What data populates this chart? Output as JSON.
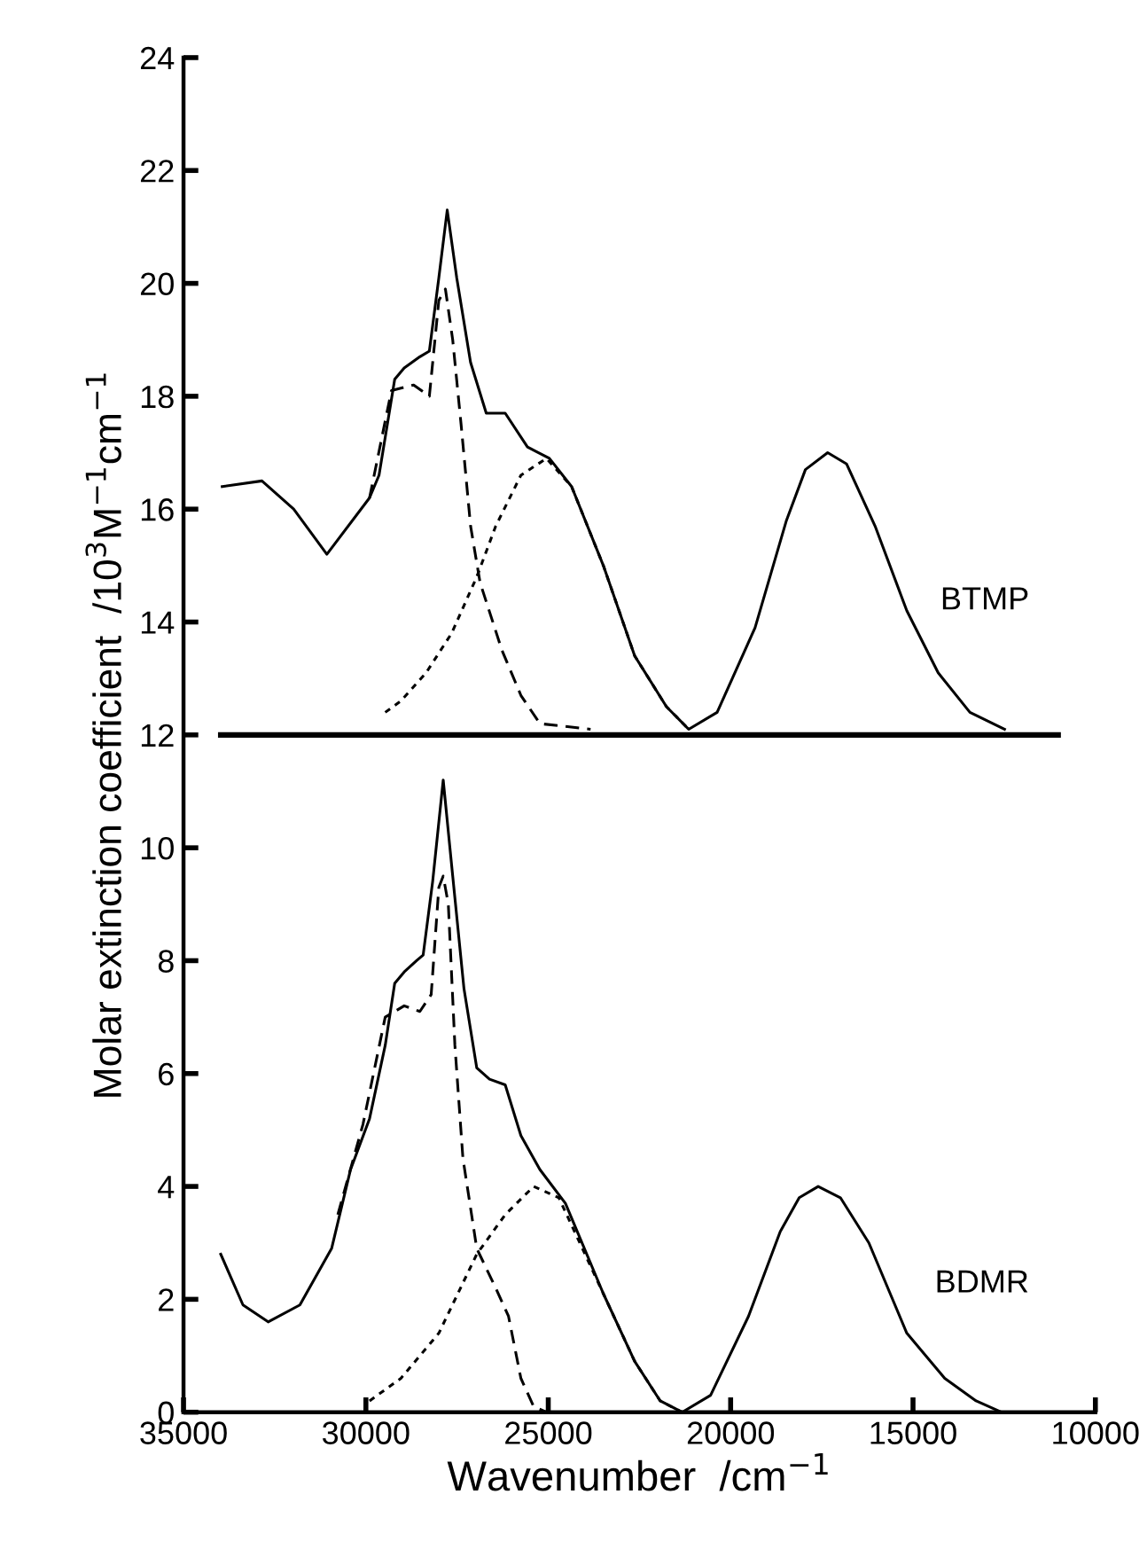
{
  "chart_data": {
    "type": "line",
    "xlabel": "Wavenumber  /cm$^{−1}$",
    "ylabel": "Molar extinction coefficient  /10$^{3}$M$^{−1}$cm$^{−1}$",
    "xlim": [
      35000,
      10000
    ],
    "xticks": [
      35000,
      30000,
      25000,
      20000,
      15000,
      10000
    ],
    "ylim": [
      0,
      24
    ],
    "yticks": [
      0,
      2,
      4,
      6,
      8,
      10,
      12,
      14,
      16,
      18,
      20,
      22,
      24
    ],
    "grid": false,
    "legend": false,
    "marker": "none",
    "series": [
      {
        "name": "BTMP",
        "color": "#000000",
        "line_style": "solid",
        "x": [
          33940,
          32850,
          31980,
          31070,
          29900,
          29640,
          29210,
          28950,
          28520,
          28260,
          28000,
          27770,
          27510,
          27130,
          26700,
          26180,
          25570,
          24970,
          24360,
          23490,
          22630,
          21760,
          21150,
          20370,
          19330,
          18470,
          17950,
          17340,
          16820,
          16040,
          15170,
          14310,
          13440,
          12490
        ],
        "values": [
          16.4,
          16.5,
          16.0,
          15.2,
          16.2,
          16.6,
          18.3,
          18.5,
          18.7,
          18.8,
          20.1,
          21.3,
          20.1,
          18.6,
          17.7,
          17.7,
          17.1,
          16.9,
          16.4,
          15.0,
          13.4,
          12.5,
          12.1,
          12.4,
          13.9,
          15.8,
          16.7,
          17.0,
          16.8,
          15.7,
          14.2,
          13.1,
          12.4,
          12.1
        ]
      },
      {
        "color": "#000000",
        "line_style": "dashed",
        "x": [
          29900,
          29300,
          28690,
          28260,
          28000,
          27820,
          27620,
          27390,
          27130,
          26870,
          26270,
          25750,
          25230,
          23840
        ],
        "values": [
          16.2,
          18.1,
          18.2,
          18.0,
          19.7,
          19.9,
          19.0,
          17.5,
          15.7,
          14.7,
          13.5,
          12.7,
          12.2,
          12.1
        ]
      },
      {
        "color": "#000000",
        "line_style": "dotted",
        "x": [
          29470,
          29040,
          28350,
          27650,
          26960,
          26440,
          25750,
          25050,
          24360,
          23490,
          22630,
          21760,
          21150
        ],
        "values": [
          12.4,
          12.6,
          13.1,
          13.8,
          14.8,
          15.7,
          16.6,
          16.9,
          16.4,
          15.0,
          13.4,
          12.5,
          12.1
        ]
      },
      {
        "color": "#000000",
        "line_style": "solid",
        "x": [
          33980,
          11020
        ],
        "values": [
          12,
          12
        ]
      },
      {
        "name": "BDMR",
        "color": "#000000",
        "line_style": "solid",
        "x": [
          33980,
          33370,
          32680,
          31810,
          30940,
          30420,
          29900,
          29470,
          29210,
          28950,
          28610,
          28430,
          28170,
          27880,
          27620,
          27310,
          26960,
          26610,
          26180,
          25750,
          25230,
          24530,
          23490,
          22630,
          21930,
          21330,
          20550,
          19510,
          18640,
          18120,
          17600,
          16990,
          16210,
          15170,
          14130,
          13270,
          12570
        ],
        "values": [
          2.8,
          1.9,
          1.6,
          1.9,
          2.9,
          4.3,
          5.2,
          6.5,
          7.6,
          7.8,
          8.0,
          8.1,
          9.4,
          11.2,
          9.5,
          7.5,
          6.1,
          5.9,
          5.8,
          4.9,
          4.3,
          3.7,
          2.1,
          0.9,
          0.2,
          0.0,
          0.3,
          1.7,
          3.2,
          3.8,
          4.0,
          3.8,
          3.0,
          1.4,
          0.6,
          0.2,
          0.0
        ]
      },
      {
        "color": "#000000",
        "line_style": "dashed",
        "x": [
          30770,
          30080,
          29470,
          28950,
          28520,
          28210,
          28000,
          27880,
          27740,
          27560,
          27340,
          26960,
          26440,
          26090,
          25750,
          25400,
          25050
        ],
        "values": [
          3.5,
          5.1,
          7.0,
          7.2,
          7.1,
          7.4,
          9.3,
          9.5,
          9.0,
          6.5,
          4.5,
          2.9,
          2.2,
          1.7,
          0.6,
          0.1,
          0.0
        ]
      },
      {
        "color": "#000000",
        "line_style": "dotted",
        "x": [
          29900,
          29040,
          28000,
          26960,
          26180,
          25400,
          24710,
          23490,
          22630,
          21930,
          21330
        ],
        "values": [
          0.2,
          0.6,
          1.4,
          2.8,
          3.5,
          4.0,
          3.8,
          2.1,
          0.9,
          0.2,
          0.0
        ]
      }
    ]
  }
}
